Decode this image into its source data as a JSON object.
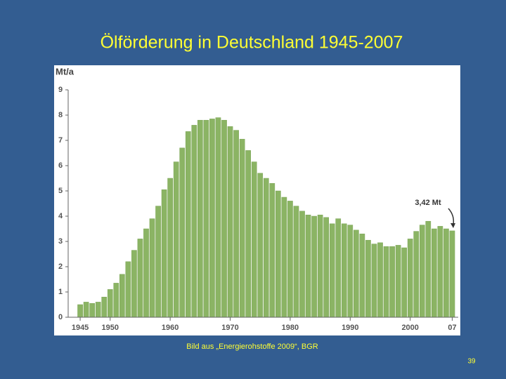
{
  "chart_data": {
    "type": "bar",
    "title": "Ölförderung in Deutschland 1945-2007",
    "y_label": "Mt/a",
    "annotation": "3,42 Mt",
    "color": "#8bb464",
    "x": [
      1945,
      1946,
      1947,
      1948,
      1949,
      1950,
      1951,
      1952,
      1953,
      1954,
      1955,
      1956,
      1957,
      1958,
      1959,
      1960,
      1961,
      1962,
      1963,
      1964,
      1965,
      1966,
      1967,
      1968,
      1969,
      1970,
      1971,
      1972,
      1973,
      1974,
      1975,
      1976,
      1977,
      1978,
      1979,
      1980,
      1981,
      1982,
      1983,
      1984,
      1985,
      1986,
      1987,
      1988,
      1989,
      1990,
      1991,
      1992,
      1993,
      1994,
      1995,
      1996,
      1997,
      1998,
      1999,
      2000,
      2001,
      2002,
      2003,
      2004,
      2005,
      2006,
      2007
    ],
    "values": [
      0.5,
      0.6,
      0.55,
      0.6,
      0.8,
      1.1,
      1.35,
      1.7,
      2.2,
      2.65,
      3.1,
      3.5,
      3.9,
      4.4,
      5.05,
      5.5,
      6.15,
      6.7,
      7.35,
      7.6,
      7.8,
      7.8,
      7.85,
      7.9,
      7.8,
      7.55,
      7.4,
      7.05,
      6.6,
      6.15,
      5.7,
      5.5,
      5.3,
      5.0,
      4.75,
      4.6,
      4.4,
      4.2,
      4.05,
      4.0,
      4.05,
      3.95,
      3.7,
      3.9,
      3.7,
      3.65,
      3.45,
      3.3,
      3.05,
      2.9,
      2.95,
      2.8,
      2.8,
      2.85,
      2.75,
      3.1,
      3.4,
      3.65,
      3.8,
      3.5,
      3.6,
      3.5,
      3.42
    ],
    "xlim": [
      1943,
      2008
    ],
    "xticks": [
      1945,
      1950,
      1960,
      1970,
      1980,
      1990,
      2000,
      {
        "value": 2007,
        "label": "07"
      }
    ],
    "ylim": [
      0,
      9
    ],
    "yticks": [
      0,
      1,
      2,
      3,
      4,
      5,
      6,
      7,
      8,
      9
    ]
  },
  "slide": {
    "caption": "Bild aus „Energierohstoffe 2009“, BGR",
    "page_number": "39"
  }
}
